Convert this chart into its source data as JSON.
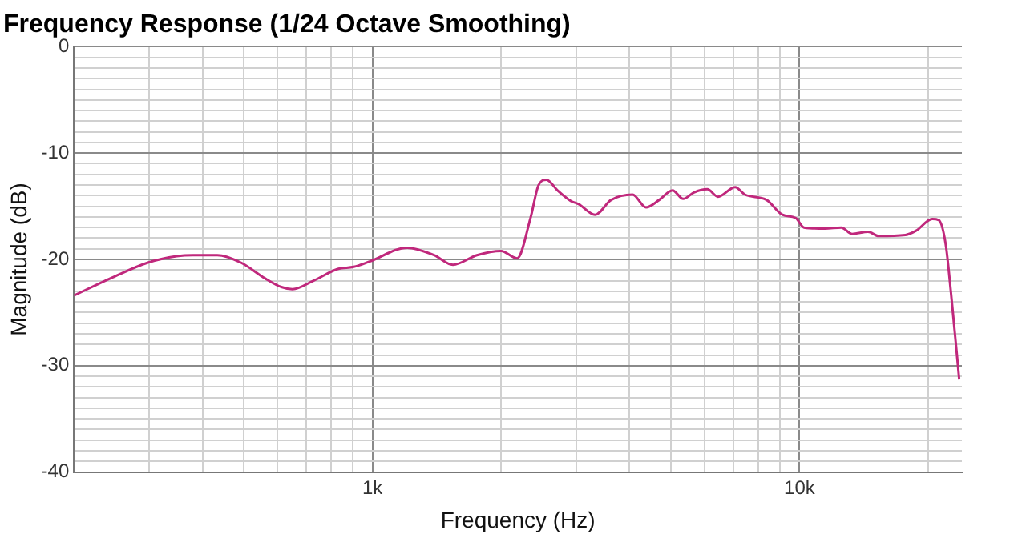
{
  "chart_data": {
    "type": "line",
    "title": "Frequency Response (1/24 Octave Smoothing)",
    "xlabel": "Frequency (Hz)",
    "ylabel": "Magnitude (dB)",
    "log": "x",
    "grid": true,
    "legend": false,
    "marker": "none",
    "line_style": "solid",
    "xlim": [
      200,
      24000
    ],
    "xticks": [
      {
        "value": 200,
        "label": null
      },
      {
        "value": 300,
        "label": null
      },
      {
        "value": 400,
        "label": null
      },
      {
        "value": 500,
        "label": null
      },
      {
        "value": 600,
        "label": null
      },
      {
        "value": 700,
        "label": null
      },
      {
        "value": 800,
        "label": null
      },
      {
        "value": 900,
        "label": null
      },
      {
        "value": 1000,
        "label": "1k"
      },
      {
        "value": 2000,
        "label": null
      },
      {
        "value": 3000,
        "label": null
      },
      {
        "value": 4000,
        "label": null
      },
      {
        "value": 5000,
        "label": null
      },
      {
        "value": 6000,
        "label": null
      },
      {
        "value": 7000,
        "label": null
      },
      {
        "value": 8000,
        "label": null
      },
      {
        "value": 9000,
        "label": null
      },
      {
        "value": 10000,
        "label": "10k"
      },
      {
        "value": 20000,
        "label": null
      }
    ],
    "ylim": [
      -40,
      0
    ],
    "yticks": [
      0,
      {
        "value": -1,
        "label": null
      },
      {
        "value": -2,
        "label": null
      },
      {
        "value": -3,
        "label": null
      },
      {
        "value": -4,
        "label": null
      },
      {
        "value": -5,
        "label": null
      },
      {
        "value": -6,
        "label": null
      },
      {
        "value": -7,
        "label": null
      },
      {
        "value": -8,
        "label": null
      },
      {
        "value": -9,
        "label": null
      },
      -10,
      {
        "value": -11,
        "label": null
      },
      {
        "value": -12,
        "label": null
      },
      {
        "value": -13,
        "label": null
      },
      {
        "value": -14,
        "label": null
      },
      {
        "value": -15,
        "label": null
      },
      {
        "value": -16,
        "label": null
      },
      {
        "value": -17,
        "label": null
      },
      {
        "value": -18,
        "label": null
      },
      {
        "value": -19,
        "label": null
      },
      -20,
      {
        "value": -21,
        "label": null
      },
      {
        "value": -22,
        "label": null
      },
      {
        "value": -23,
        "label": null
      },
      {
        "value": -24,
        "label": null
      },
      {
        "value": -25,
        "label": null
      },
      {
        "value": -26,
        "label": null
      },
      {
        "value": -27,
        "label": null
      },
      {
        "value": -28,
        "label": null
      },
      {
        "value": -29,
        "label": null
      },
      -30,
      {
        "value": -31,
        "label": null
      },
      {
        "value": -32,
        "label": null
      },
      {
        "value": -33,
        "label": null
      },
      {
        "value": -34,
        "label": null
      },
      {
        "value": -35,
        "label": null
      },
      {
        "value": -36,
        "label": null
      },
      {
        "value": -37,
        "label": null
      },
      {
        "value": -38,
        "label": null
      },
      {
        "value": -39,
        "label": null
      },
      -40
    ],
    "series": [
      {
        "color": "#c0287c",
        "x": [
          200,
          246,
          298,
          348,
          380,
          433,
          492,
          561,
          612,
          650,
          728,
          829,
          904,
          985,
          1206,
          1394,
          1543,
          1756,
          1999,
          2182,
          2345,
          2449,
          2555,
          2710,
          2913,
          3040,
          3319,
          3621,
          4065,
          4370,
          4694,
          5043,
          5340,
          5658,
          6080,
          6443,
          7066,
          7448,
          8368,
          9120,
          9797,
          10240,
          11480,
          12530,
          13270,
          14470,
          15320,
          17700,
          18750,
          20460,
          21190,
          22000,
          22640,
          23660
        ],
        "values": [
          -23.4,
          -21.7,
          -20.3,
          -19.7,
          -19.6,
          -19.6,
          -20.3,
          -21.8,
          -22.6,
          -22.8,
          -22.0,
          -20.9,
          -20.7,
          -20.2,
          -18.9,
          -19.6,
          -20.5,
          -19.6,
          -19.2,
          -19.9,
          -16.1,
          -13.0,
          -12.5,
          -13.5,
          -14.5,
          -14.8,
          -15.8,
          -14.4,
          -13.9,
          -15.1,
          -14.4,
          -13.5,
          -14.3,
          -13.7,
          -13.4,
          -14.1,
          -13.2,
          -13.9,
          -14.4,
          -15.8,
          -16.1,
          -17.0,
          -17.1,
          -17.0,
          -17.6,
          -17.4,
          -17.8,
          -17.7,
          -17.3,
          -16.2,
          -16.3,
          -18.6,
          -23.2,
          -31.3
        ]
      }
    ]
  }
}
